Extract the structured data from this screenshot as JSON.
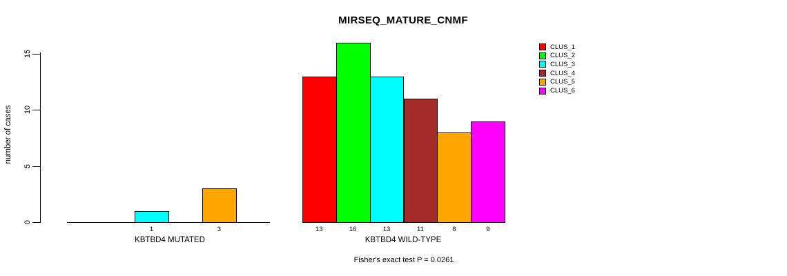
{
  "chart_data": {
    "type": "bar",
    "title": "MIRSEQ_MATURE_CNMF",
    "ylabel": "number of cases",
    "xlabel": "",
    "yticks": [
      0,
      5,
      10,
      15
    ],
    "ylim": [
      0,
      16
    ],
    "grid": false,
    "legend_position": "top-right",
    "clusters": [
      {
        "name": "CLUS_1",
        "color": "#FF0000"
      },
      {
        "name": "CLUS_2",
        "color": "#00FF00"
      },
      {
        "name": "CLUS_3",
        "color": "#00FFFF"
      },
      {
        "name": "CLUS_4",
        "color": "#A52A2A"
      },
      {
        "name": "CLUS_5",
        "color": "#FFA500"
      },
      {
        "name": "CLUS_6",
        "color": "#FF00FF"
      }
    ],
    "groups": [
      {
        "label": "KBTBD4 MUTATED",
        "values": [
          0,
          0,
          1,
          0,
          3,
          0
        ]
      },
      {
        "label": "KBTBD4 WILD-TYPE",
        "values": [
          13,
          16,
          13,
          11,
          8,
          9
        ]
      }
    ],
    "footnote": "Fisher's exact test P = 0.0261"
  }
}
